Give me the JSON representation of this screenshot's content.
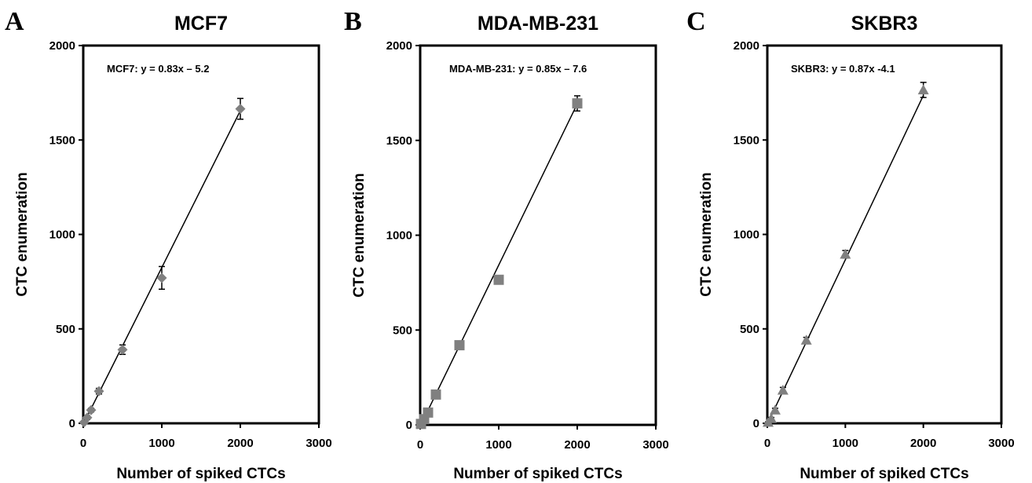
{
  "chart_data": [
    {
      "type": "scatter",
      "panel": "A",
      "title": "MCF7",
      "xlabel": "Number of spiked CTCs",
      "ylabel": "CTC enumeration",
      "xlim": [
        0,
        3000
      ],
      "ylim": [
        0,
        2000
      ],
      "xticks": [
        "0",
        "1000",
        "2000",
        "3000"
      ],
      "yticks": [
        "0",
        "500",
        "1000",
        "1500",
        "2000"
      ],
      "marker": "diamond",
      "color": "#808080",
      "equation": "MCF7: y = 0.83x – 5.2",
      "fit": {
        "slope": 0.83,
        "intercept": -5.2
      },
      "series": [
        {
          "x": [
            10,
            50,
            100,
            200,
            500,
            1000,
            2000
          ],
          "y": [
            5,
            30,
            70,
            170,
            390,
            770,
            1665
          ],
          "err": [
            5,
            10,
            10,
            15,
            25,
            60,
            55
          ]
        }
      ]
    },
    {
      "type": "scatter",
      "panel": "B",
      "title": "MDA-MB-231",
      "xlabel": "Number of spiked CTCs",
      "ylabel": "CTC enumeration",
      "xlim": [
        0,
        3000
      ],
      "ylim": [
        0,
        2000
      ],
      "xticks": [
        "0",
        "1000",
        "2000",
        "3000"
      ],
      "yticks": [
        "0",
        "500",
        "1000",
        "1500",
        "2000"
      ],
      "marker": "square",
      "color": "#808080",
      "equation": "MDA-MB-231: y = 0.85x – 7.6",
      "fit": {
        "slope": 0.85,
        "intercept": -7.6
      },
      "series": [
        {
          "x": [
            10,
            50,
            100,
            200,
            500,
            1000,
            2000
          ],
          "y": [
            5,
            30,
            65,
            160,
            420,
            765,
            1695
          ],
          "err": [
            3,
            8,
            10,
            12,
            15,
            15,
            40
          ]
        }
      ]
    },
    {
      "type": "scatter",
      "panel": "C",
      "title": "SKBR3",
      "xlabel": "Number of spiked CTCs",
      "ylabel": "CTC enumeration",
      "xlim": [
        0,
        3000
      ],
      "ylim": [
        0,
        2000
      ],
      "xticks": [
        "0",
        "1000",
        "2000",
        "3000"
      ],
      "yticks": [
        "0",
        "500",
        "1000",
        "1500",
        "2000"
      ],
      "marker": "triangle",
      "color": "#808080",
      "equation": "SKBR3: y = 0.87x -4.1",
      "fit": {
        "slope": 0.87,
        "intercept": -4.1
      },
      "series": [
        {
          "x": [
            10,
            50,
            100,
            200,
            500,
            1000,
            2000
          ],
          "y": [
            5,
            25,
            70,
            175,
            440,
            895,
            1765
          ],
          "err": [
            3,
            6,
            10,
            15,
            15,
            20,
            40
          ]
        }
      ]
    }
  ]
}
